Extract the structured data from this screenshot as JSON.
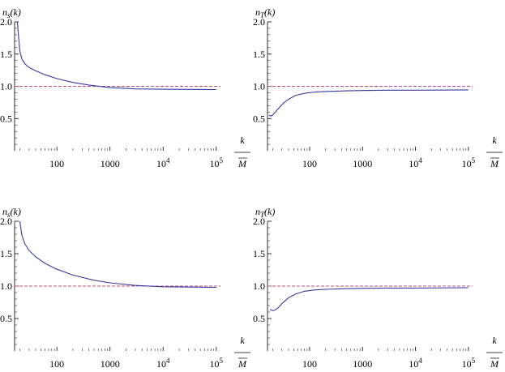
{
  "colors": {
    "curve": "#3a3aa0",
    "reference": "#c0507a",
    "axis": "#000000"
  },
  "chart_data": [
    {
      "type": "line",
      "ylabel_html": "n<tspan font-size=\"9\" dy=\"2\">s</tspan><tspan dy=\"-2\">(k)</tspan>",
      "ylabel": "ns(k)",
      "xlabel_num": "k",
      "xlabel_den": "M",
      "xscale": "log",
      "xlim": [
        16,
        120000
      ],
      "ylim": [
        0,
        2.0
      ],
      "x_ticks": [
        {
          "v": 100,
          "label": "100"
        },
        {
          "v": 1000,
          "label": "1000"
        },
        {
          "v": 10000,
          "label": "10",
          "sup": "4"
        },
        {
          "v": 100000,
          "label": "10",
          "sup": "5"
        }
      ],
      "y_ticks": [
        {
          "v": 0.5,
          "label": "0.5"
        },
        {
          "v": 1.0,
          "label": "1.0"
        },
        {
          "v": 1.5,
          "label": "1.5"
        },
        {
          "v": 2.0,
          "label": "2.0"
        }
      ],
      "reference_y": 1.0,
      "series": [
        {
          "x": [
            18,
            20,
            22,
            25,
            30,
            40,
            60,
            100,
            200,
            400,
            1000,
            3000,
            10000,
            30000,
            100000
          ],
          "y": [
            2.0,
            1.55,
            1.42,
            1.35,
            1.29,
            1.24,
            1.18,
            1.12,
            1.06,
            1.02,
            0.98,
            0.96,
            0.955,
            0.952,
            0.95
          ]
        }
      ]
    },
    {
      "type": "line",
      "ylabel": "nT(k)",
      "xlabel_num": "k",
      "xlabel_den": "M",
      "xscale": "log",
      "xlim": [
        16,
        120000
      ],
      "ylim": [
        0,
        2.0
      ],
      "x_ticks": [
        {
          "v": 100,
          "label": "100"
        },
        {
          "v": 1000,
          "label": "1000"
        },
        {
          "v": 10000,
          "label": "10",
          "sup": "4"
        },
        {
          "v": 100000,
          "label": "10",
          "sup": "5"
        }
      ],
      "y_ticks": [
        {
          "v": 0.5,
          "label": "0.5"
        },
        {
          "v": 1.0,
          "label": "1.0"
        },
        {
          "v": 1.5,
          "label": "1.5"
        },
        {
          "v": 2.0,
          "label": "2.0"
        }
      ],
      "reference_y": 1.0,
      "series": [
        {
          "x": [
            17,
            19,
            22,
            26,
            32,
            40,
            55,
            80,
            120,
            200,
            500,
            1000,
            3000,
            10000,
            100000
          ],
          "y": [
            0.55,
            0.54,
            0.59,
            0.66,
            0.74,
            0.8,
            0.86,
            0.89,
            0.91,
            0.92,
            0.93,
            0.935,
            0.94,
            0.94,
            0.945
          ]
        }
      ]
    },
    {
      "type": "line",
      "ylabel": "ns(k)",
      "xlabel_num": "k",
      "xlabel_den": "M",
      "xscale": "log",
      "xlim": [
        16,
        120000
      ],
      "ylim": [
        0,
        2.0
      ],
      "x_ticks": [
        {
          "v": 100,
          "label": "100"
        },
        {
          "v": 1000,
          "label": "1000"
        },
        {
          "v": 10000,
          "label": "10",
          "sup": "4"
        },
        {
          "v": 100000,
          "label": "10",
          "sup": "5"
        }
      ],
      "y_ticks": [
        {
          "v": 0.5,
          "label": "0.5"
        },
        {
          "v": 1.0,
          "label": "1.0"
        },
        {
          "v": 1.5,
          "label": "1.5"
        },
        {
          "v": 2.0,
          "label": "2.0"
        }
      ],
      "reference_y": 1.0,
      "series": [
        {
          "x": [
            20,
            22,
            25,
            30,
            40,
            60,
            100,
            200,
            500,
            1000,
            3000,
            10000,
            30000,
            100000
          ],
          "y": [
            2.0,
            1.78,
            1.65,
            1.55,
            1.45,
            1.35,
            1.26,
            1.17,
            1.09,
            1.05,
            1.01,
            0.99,
            0.985,
            0.98
          ]
        }
      ]
    },
    {
      "type": "line",
      "ylabel": "nT(k)",
      "xlabel_num": "k",
      "xlabel_den": "M",
      "xscale": "log",
      "xlim": [
        16,
        120000
      ],
      "ylim": [
        0,
        2.0
      ],
      "x_ticks": [
        {
          "v": 100,
          "label": "100"
        },
        {
          "v": 1000,
          "label": "1000"
        },
        {
          "v": 10000,
          "label": "10",
          "sup": "4"
        },
        {
          "v": 100000,
          "label": "10",
          "sup": "5"
        }
      ],
      "y_ticks": [
        {
          "v": 0.5,
          "label": "0.5"
        },
        {
          "v": 1.0,
          "label": "1.0"
        },
        {
          "v": 1.5,
          "label": "1.5"
        },
        {
          "v": 2.0,
          "label": "2.0"
        }
      ],
      "reference_y": 1.0,
      "series": [
        {
          "x": [
            18,
            20,
            22,
            25,
            30,
            40,
            55,
            80,
            120,
            200,
            500,
            1000,
            3000,
            10000,
            100000
          ],
          "y": [
            0.64,
            0.62,
            0.63,
            0.66,
            0.73,
            0.82,
            0.88,
            0.92,
            0.94,
            0.95,
            0.96,
            0.965,
            0.97,
            0.97,
            0.975
          ]
        }
      ]
    }
  ]
}
